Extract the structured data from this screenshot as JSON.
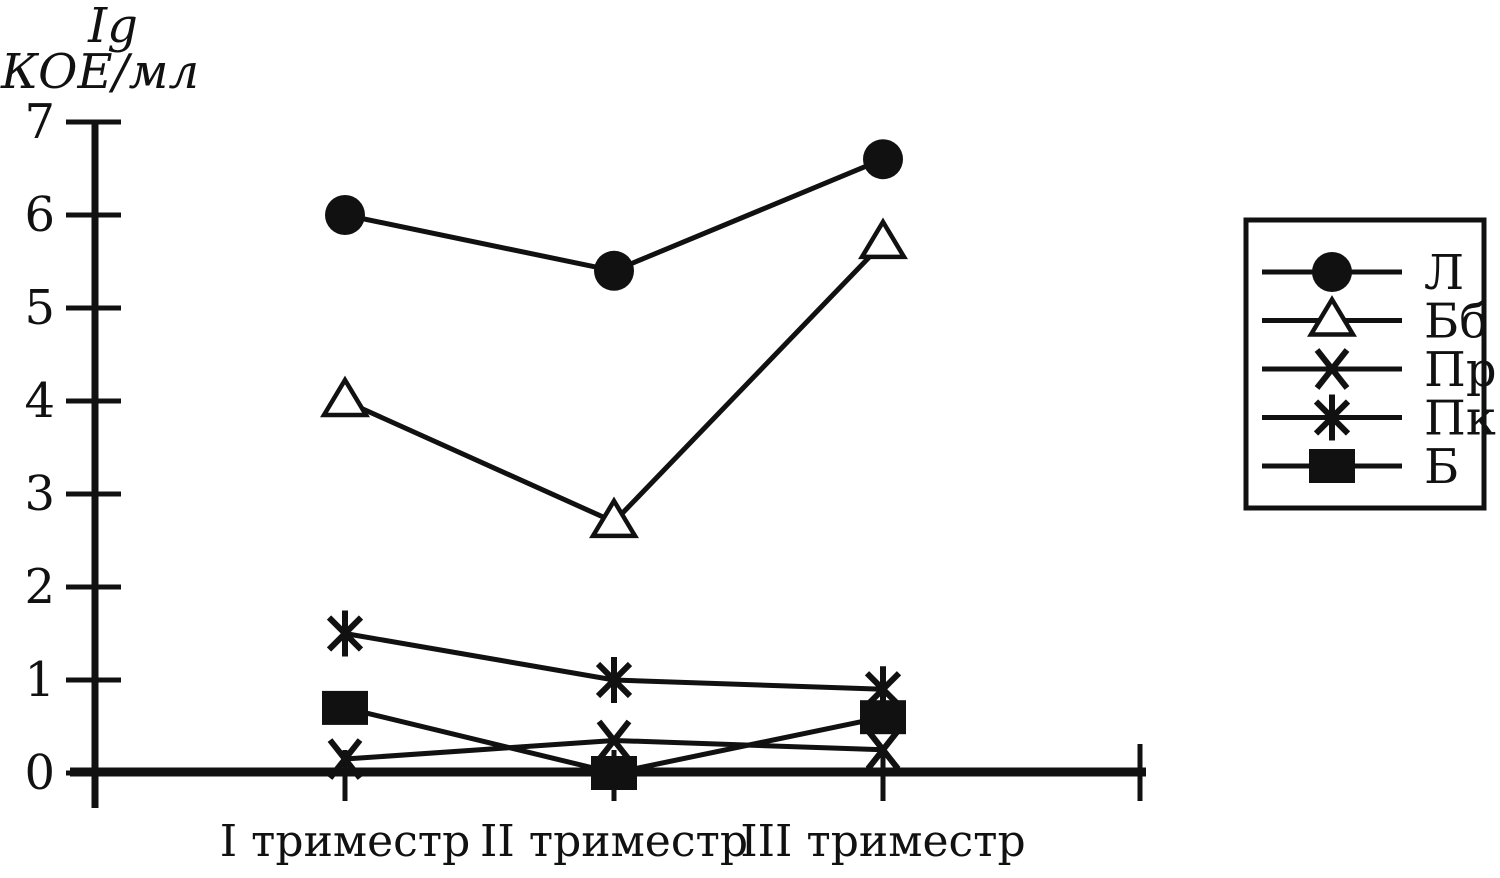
{
  "chart_data": {
    "type": "line",
    "title": "",
    "ylabel": "Ig КОЕ/мл",
    "ylabel_lines": [
      "Ig",
      "КОЕ/мл"
    ],
    "xlabel": "",
    "categories": [
      "I триместр",
      "II триместр",
      "III триместр"
    ],
    "series": [
      {
        "name": "Л",
        "marker": "filled-circle",
        "values": [
          6.0,
          5.4,
          6.6
        ]
      },
      {
        "name": "Бб",
        "marker": "open-triangle",
        "values": [
          4.0,
          2.7,
          5.7
        ]
      },
      {
        "name": "Пр",
        "marker": "x-cross",
        "values": [
          0.15,
          0.35,
          0.25
        ]
      },
      {
        "name": "Пк",
        "marker": "asterisk",
        "values": [
          1.5,
          1.0,
          0.9
        ]
      },
      {
        "name": "Б",
        "marker": "filled-square",
        "values": [
          0.7,
          0.0,
          0.6
        ]
      }
    ],
    "y_ticks": [
      0,
      1,
      2,
      3,
      4,
      5,
      6,
      7
    ],
    "ylim": [
      0,
      7
    ],
    "grid": false,
    "legend_position": "right",
    "colors": {
      "ink": "#111111",
      "background": "#ffffff"
    }
  }
}
